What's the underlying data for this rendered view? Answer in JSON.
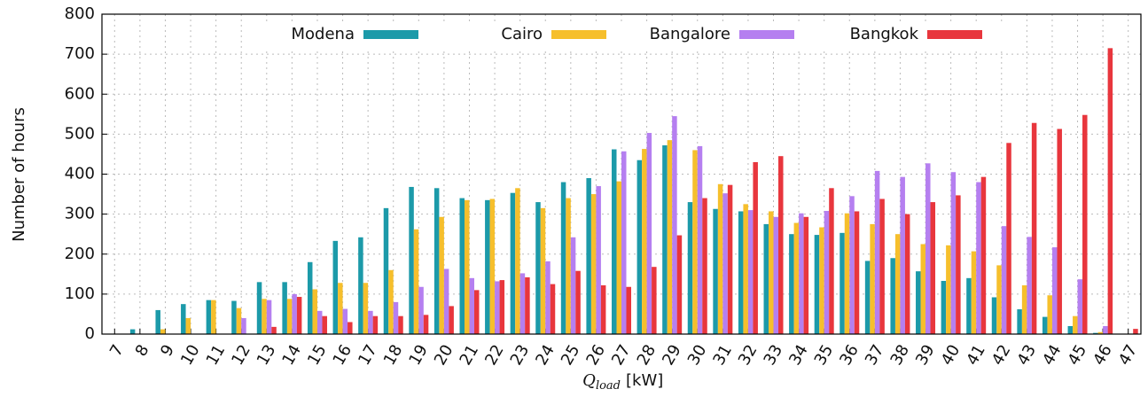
{
  "chart_data": {
    "type": "bar",
    "ylabel": "Number of hours",
    "xlabel": {
      "symbol": "Q",
      "subscript": "load",
      "unit": "[kW]"
    },
    "categories": [
      "7",
      "8",
      "9",
      "10",
      "11",
      "12",
      "13",
      "14",
      "15",
      "16",
      "17",
      "18",
      "19",
      "20",
      "21",
      "22",
      "23",
      "24",
      "25",
      "26",
      "27",
      "28",
      "29",
      "30",
      "31",
      "32",
      "33",
      "34",
      "35",
      "36",
      "37",
      "38",
      "39",
      "40",
      "41",
      "42",
      "43",
      "44",
      "45",
      "46",
      "47"
    ],
    "series": [
      {
        "name": "Modena",
        "color": "#1c9aa9",
        "values": [
          0,
          12,
          60,
          75,
          85,
          83,
          130,
          130,
          180,
          233,
          242,
          315,
          368,
          365,
          340,
          335,
          353,
          330,
          380,
          390,
          462,
          435,
          472,
          330,
          313,
          307,
          275,
          250,
          248,
          253,
          183,
          190,
          157,
          133,
          140,
          92,
          62,
          43,
          20,
          3,
          0
        ]
      },
      {
        "name": "Cairo",
        "color": "#f6bf2c",
        "values": [
          0,
          0,
          12,
          40,
          85,
          65,
          88,
          88,
          112,
          128,
          128,
          160,
          262,
          293,
          335,
          338,
          365,
          315,
          340,
          350,
          382,
          463,
          485,
          460,
          375,
          325,
          307,
          278,
          267,
          302,
          275,
          250,
          225,
          222,
          207,
          172,
          122,
          97,
          45,
          5,
          0
        ]
      },
      {
        "name": "Bangalore",
        "color": "#b57ff0",
        "values": [
          0,
          0,
          0,
          0,
          0,
          40,
          85,
          100,
          58,
          63,
          58,
          80,
          118,
          163,
          140,
          132,
          152,
          182,
          242,
          370,
          457,
          503,
          545,
          470,
          352,
          310,
          293,
          302,
          308,
          345,
          408,
          393,
          427,
          405,
          380,
          270,
          243,
          217,
          137,
          20,
          0
        ]
      },
      {
        "name": "Bangkok",
        "color": "#e8363d",
        "values": [
          0,
          0,
          0,
          0,
          0,
          0,
          18,
          93,
          45,
          30,
          45,
          45,
          48,
          70,
          110,
          135,
          142,
          125,
          158,
          122,
          118,
          168,
          247,
          340,
          373,
          430,
          445,
          293,
          365,
          307,
          338,
          300,
          330,
          347,
          393,
          478,
          528,
          513,
          548,
          715,
          13
        ]
      }
    ],
    "ylim": [
      0,
      800
    ],
    "yticks": [
      0,
      100,
      200,
      300,
      400,
      500,
      600,
      700,
      800
    ],
    "grid": true,
    "legend": "top"
  }
}
